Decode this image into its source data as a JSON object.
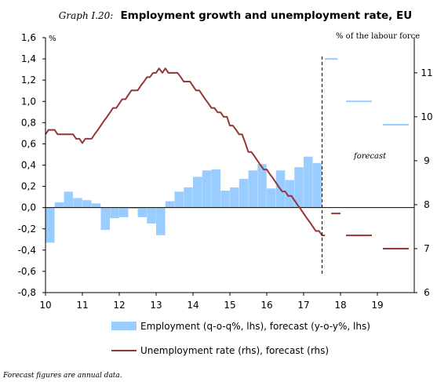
{
  "chart_data": {
    "type": "bar+line",
    "title_prefix": "Graph I.20:",
    "title": "Employment growth and unemployment rate, EU",
    "left_unit": "%",
    "right_unit": "% of the labour force",
    "annotation": "forecast",
    "footnote": "Forecast figures are annual data.",
    "x_axis": {
      "min": 10,
      "max": 20,
      "ticks": [
        "10",
        "11",
        "12",
        "13",
        "14",
        "15",
        "16",
        "17",
        "18",
        "19"
      ]
    },
    "y_left": {
      "min": -0.8,
      "max": 1.6,
      "ticks": [
        "-0,8",
        "-0,6",
        "-0,4",
        "-0,2",
        "0,0",
        "0,2",
        "0,4",
        "0,6",
        "0,8",
        "1,0",
        "1,2",
        "1,4",
        "1,6"
      ]
    },
    "y_right": {
      "min": 6,
      "max": 11.8,
      "ticks": [
        "6",
        "7",
        "8",
        "9",
        "10",
        "11"
      ]
    },
    "forecast_divider_x": 17.5,
    "series": [
      {
        "name": "Employment (q-o-q%, lhs), forecast (y-o-y%, lhs)",
        "kind": "bar",
        "color": "#99ccff",
        "quarterly": [
          {
            "x": 10.0,
            "y": -0.33
          },
          {
            "x": 10.25,
            "y": 0.05
          },
          {
            "x": 10.5,
            "y": 0.15
          },
          {
            "x": 10.75,
            "y": 0.09
          },
          {
            "x": 11.0,
            "y": 0.07
          },
          {
            "x": 11.25,
            "y": 0.04
          },
          {
            "x": 11.5,
            "y": -0.21
          },
          {
            "x": 11.75,
            "y": -0.1
          },
          {
            "x": 12.0,
            "y": -0.09
          },
          {
            "x": 12.25,
            "y": -0.01
          },
          {
            "x": 12.5,
            "y": -0.09
          },
          {
            "x": 12.75,
            "y": -0.15
          },
          {
            "x": 13.0,
            "y": -0.26
          },
          {
            "x": 13.25,
            "y": 0.06
          },
          {
            "x": 13.5,
            "y": 0.15
          },
          {
            "x": 13.75,
            "y": 0.19
          },
          {
            "x": 14.0,
            "y": 0.29
          },
          {
            "x": 14.25,
            "y": 0.35
          },
          {
            "x": 14.5,
            "y": 0.36
          },
          {
            "x": 14.75,
            "y": 0.16
          },
          {
            "x": 15.0,
            "y": 0.19
          },
          {
            "x": 15.25,
            "y": 0.27
          },
          {
            "x": 15.5,
            "y": 0.35
          },
          {
            "x": 15.75,
            "y": 0.41
          },
          {
            "x": 16.0,
            "y": 0.18
          },
          {
            "x": 16.25,
            "y": 0.35
          },
          {
            "x": 16.5,
            "y": 0.26
          },
          {
            "x": 16.75,
            "y": 0.38
          },
          {
            "x": 17.0,
            "y": 0.48
          },
          {
            "x": 17.25,
            "y": 0.42
          }
        ],
        "forecast": [
          {
            "from": 17.5,
            "to": 18.0,
            "y": 1.4
          },
          {
            "from": 18.0,
            "to": 19.0,
            "y": 1.0
          },
          {
            "from": 19.0,
            "to": 20.0,
            "y": 0.78
          }
        ]
      },
      {
        "name": "Unemployment rate (rhs), forecast (rhs)",
        "kind": "line",
        "color": "#943634",
        "monthly": [
          [
            10.0,
            9.6
          ],
          [
            10.08,
            9.7
          ],
          [
            10.17,
            9.7
          ],
          [
            10.25,
            9.7
          ],
          [
            10.33,
            9.6
          ],
          [
            10.42,
            9.6
          ],
          [
            10.5,
            9.6
          ],
          [
            10.58,
            9.6
          ],
          [
            10.67,
            9.6
          ],
          [
            10.75,
            9.6
          ],
          [
            10.83,
            9.5
          ],
          [
            10.92,
            9.5
          ],
          [
            11.0,
            9.4
          ],
          [
            11.08,
            9.5
          ],
          [
            11.17,
            9.5
          ],
          [
            11.25,
            9.5
          ],
          [
            11.33,
            9.6
          ],
          [
            11.42,
            9.7
          ],
          [
            11.5,
            9.8
          ],
          [
            11.58,
            9.9
          ],
          [
            11.67,
            10.0
          ],
          [
            11.75,
            10.1
          ],
          [
            11.83,
            10.2
          ],
          [
            11.92,
            10.2
          ],
          [
            12.0,
            10.3
          ],
          [
            12.08,
            10.4
          ],
          [
            12.17,
            10.4
          ],
          [
            12.25,
            10.5
          ],
          [
            12.33,
            10.6
          ],
          [
            12.42,
            10.6
          ],
          [
            12.5,
            10.6
          ],
          [
            12.58,
            10.7
          ],
          [
            12.67,
            10.8
          ],
          [
            12.75,
            10.9
          ],
          [
            12.83,
            10.9
          ],
          [
            12.92,
            11.0
          ],
          [
            13.0,
            11.0
          ],
          [
            13.08,
            11.1
          ],
          [
            13.17,
            11.0
          ],
          [
            13.25,
            11.1
          ],
          [
            13.33,
            11.0
          ],
          [
            13.42,
            11.0
          ],
          [
            13.5,
            11.0
          ],
          [
            13.58,
            11.0
          ],
          [
            13.67,
            10.9
          ],
          [
            13.75,
            10.8
          ],
          [
            13.83,
            10.8
          ],
          [
            13.92,
            10.8
          ],
          [
            14.0,
            10.7
          ],
          [
            14.08,
            10.6
          ],
          [
            14.17,
            10.6
          ],
          [
            14.25,
            10.5
          ],
          [
            14.33,
            10.4
          ],
          [
            14.42,
            10.3
          ],
          [
            14.5,
            10.2
          ],
          [
            14.58,
            10.2
          ],
          [
            14.67,
            10.1
          ],
          [
            14.75,
            10.1
          ],
          [
            14.83,
            10.0
          ],
          [
            14.92,
            10.0
          ],
          [
            15.0,
            9.8
          ],
          [
            15.08,
            9.8
          ],
          [
            15.17,
            9.7
          ],
          [
            15.25,
            9.6
          ],
          [
            15.33,
            9.6
          ],
          [
            15.42,
            9.4
          ],
          [
            15.5,
            9.2
          ],
          [
            15.58,
            9.2
          ],
          [
            15.67,
            9.1
          ],
          [
            15.75,
            9.0
          ],
          [
            15.83,
            8.9
          ],
          [
            15.92,
            8.8
          ],
          [
            16.0,
            8.8
          ],
          [
            16.08,
            8.7
          ],
          [
            16.17,
            8.6
          ],
          [
            16.25,
            8.5
          ],
          [
            16.33,
            8.4
          ],
          [
            16.42,
            8.3
          ],
          [
            16.5,
            8.3
          ],
          [
            16.58,
            8.2
          ],
          [
            16.67,
            8.2
          ],
          [
            16.75,
            8.1
          ],
          [
            16.83,
            8.0
          ],
          [
            16.92,
            7.9
          ],
          [
            17.0,
            7.8
          ],
          [
            17.08,
            7.7
          ],
          [
            17.17,
            7.6
          ],
          [
            17.25,
            7.5
          ],
          [
            17.33,
            7.4
          ],
          [
            17.42,
            7.4
          ],
          [
            17.5,
            7.3
          ],
          [
            17.58,
            7.3
          ]
        ],
        "forecast": [
          {
            "from": 17.75,
            "to": 18.0,
            "y": 7.8
          },
          {
            "from": 18.0,
            "to": 19.0,
            "y": 7.3
          },
          {
            "from": 19.0,
            "to": 20.0,
            "y": 7.0
          }
        ]
      }
    ],
    "legend_placement": "bottom"
  }
}
